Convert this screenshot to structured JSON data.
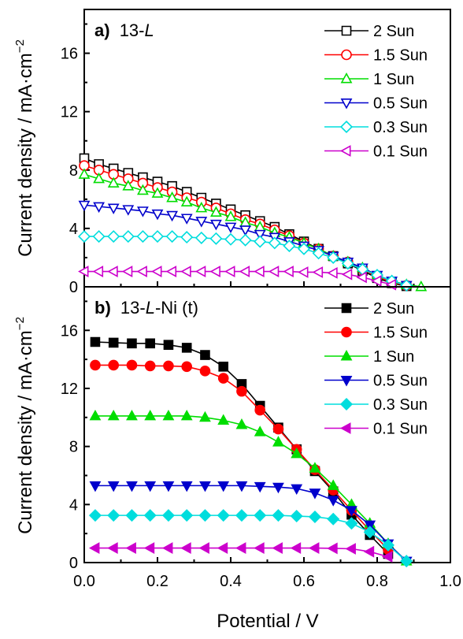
{
  "figure": {
    "xlabel": "Potential / V",
    "ylabel_base": "Current density / mA·cm",
    "ylabel_sup": "−2"
  },
  "chart_data": [
    {
      "type": "line",
      "panel_prefix": "a)",
      "panel_name": "13-",
      "panel_italic": "L",
      "panel_suffix": "",
      "marker_fill": "open",
      "xlim": [
        0.0,
        1.0
      ],
      "ylim": [
        0,
        19
      ],
      "xticks": [
        "0.0",
        "0.2",
        "0.4",
        "0.6",
        "0.8",
        "1.0"
      ],
      "show_xtick_labels": false,
      "yticks": [
        "0",
        "4",
        "8",
        "12",
        "16"
      ],
      "legend_position": "top-right",
      "x": [
        0.0,
        0.04,
        0.08,
        0.12,
        0.16,
        0.2,
        0.24,
        0.28,
        0.32,
        0.36,
        0.4,
        0.44,
        0.48,
        0.52,
        0.56,
        0.6,
        0.64,
        0.68,
        0.72,
        0.76,
        0.8,
        0.84,
        0.88,
        0.92
      ],
      "series": [
        {
          "name": "2 Sun",
          "marker": "square",
          "color": "#000000",
          "values": [
            8.8,
            8.4,
            8.1,
            7.8,
            7.5,
            7.2,
            6.9,
            6.5,
            6.1,
            5.7,
            5.3,
            4.9,
            4.5,
            4.1,
            3.6,
            3.1,
            2.6,
            2.1,
            1.6,
            1.1,
            0.6,
            0.25,
            0.05,
            null
          ]
        },
        {
          "name": "1.5 Sun",
          "marker": "circle",
          "color": "#ff0000",
          "values": [
            8.3,
            8.0,
            7.7,
            7.4,
            7.1,
            6.8,
            6.5,
            6.1,
            5.8,
            5.4,
            5.0,
            4.6,
            4.3,
            3.9,
            3.5,
            3.0,
            2.6,
            2.1,
            1.7,
            1.2,
            0.7,
            0.3,
            0.1,
            null
          ]
        },
        {
          "name": "1 Sun",
          "marker": "triangle-up",
          "color": "#00dd00",
          "values": [
            7.7,
            7.4,
            7.1,
            6.9,
            6.6,
            6.4,
            6.1,
            5.8,
            5.4,
            5.1,
            4.8,
            4.4,
            4.1,
            3.7,
            3.4,
            3.0,
            2.6,
            2.1,
            1.7,
            1.3,
            0.8,
            0.4,
            0.15,
            0.0
          ]
        },
        {
          "name": "0.5 Sun",
          "marker": "triangle-down",
          "color": "#0000cc",
          "values": [
            5.6,
            5.5,
            5.4,
            5.3,
            5.2,
            5.0,
            4.9,
            4.7,
            4.5,
            4.3,
            4.1,
            3.9,
            3.6,
            3.4,
            3.1,
            2.8,
            2.5,
            2.1,
            1.7,
            1.3,
            0.8,
            0.4,
            0.1,
            null
          ]
        },
        {
          "name": "0.3 Sun",
          "marker": "diamond",
          "color": "#00dddd",
          "values": [
            3.45,
            3.45,
            3.45,
            3.45,
            3.45,
            3.45,
            3.45,
            3.4,
            3.35,
            3.3,
            3.25,
            3.2,
            3.1,
            3.0,
            2.8,
            2.6,
            2.3,
            2.0,
            1.6,
            1.2,
            0.8,
            0.4,
            0.1,
            null
          ]
        },
        {
          "name": "0.1 Sun",
          "marker": "triangle-left",
          "color": "#cc00cc",
          "values": [
            1.05,
            1.05,
            1.05,
            1.05,
            1.05,
            1.05,
            1.05,
            1.05,
            1.05,
            1.05,
            1.05,
            1.05,
            1.05,
            1.05,
            1.05,
            1.0,
            1.0,
            0.95,
            0.85,
            0.65,
            0.4,
            0.15,
            null,
            null
          ]
        }
      ]
    },
    {
      "type": "line",
      "panel_prefix": "b)",
      "panel_name": "13-",
      "panel_italic": "L",
      "panel_suffix": "-Ni (t)",
      "marker_fill": "filled",
      "xlim": [
        0.0,
        1.0
      ],
      "ylim": [
        0,
        19
      ],
      "xticks": [
        "0.0",
        "0.2",
        "0.4",
        "0.6",
        "0.8",
        "1.0"
      ],
      "show_xtick_labels": true,
      "yticks": [
        "0",
        "4",
        "8",
        "12",
        "16"
      ],
      "legend_position": "top-right",
      "x": [
        0.03,
        0.08,
        0.13,
        0.18,
        0.23,
        0.28,
        0.33,
        0.38,
        0.43,
        0.48,
        0.53,
        0.58,
        0.63,
        0.68,
        0.73,
        0.78,
        0.83,
        0.88
      ],
      "series": [
        {
          "name": "2 Sun",
          "marker": "square",
          "color": "#000000",
          "values": [
            15.2,
            15.15,
            15.1,
            15.1,
            15.0,
            14.8,
            14.3,
            13.5,
            12.3,
            10.8,
            9.3,
            7.8,
            6.3,
            4.9,
            3.3,
            1.9,
            0.6,
            null
          ]
        },
        {
          "name": "1.5 Sun",
          "marker": "circle",
          "color": "#ff0000",
          "values": [
            13.6,
            13.6,
            13.6,
            13.55,
            13.55,
            13.5,
            13.2,
            12.7,
            11.8,
            10.5,
            9.2,
            7.8,
            6.4,
            5.0,
            3.6,
            2.2,
            0.9,
            null
          ]
        },
        {
          "name": "1 Sun",
          "marker": "triangle-up",
          "color": "#00dd00",
          "values": [
            10.1,
            10.1,
            10.1,
            10.1,
            10.1,
            10.1,
            10.0,
            9.8,
            9.5,
            9.0,
            8.3,
            7.5,
            6.5,
            5.3,
            4.0,
            2.7,
            1.3,
            0.1
          ]
        },
        {
          "name": "0.5 Sun",
          "marker": "triangle-down",
          "color": "#0000cc",
          "values": [
            5.3,
            5.3,
            5.3,
            5.3,
            5.3,
            5.3,
            5.3,
            5.3,
            5.3,
            5.25,
            5.2,
            5.1,
            4.8,
            4.3,
            3.6,
            2.6,
            1.3,
            0.1
          ]
        },
        {
          "name": "0.3 Sun",
          "marker": "diamond",
          "color": "#00dddd",
          "values": [
            3.25,
            3.25,
            3.25,
            3.25,
            3.25,
            3.25,
            3.25,
            3.25,
            3.25,
            3.25,
            3.25,
            3.2,
            3.15,
            3.0,
            2.7,
            2.1,
            1.2,
            0.1
          ]
        },
        {
          "name": "0.1 Sun",
          "marker": "triangle-left",
          "color": "#cc00cc",
          "values": [
            1.0,
            1.0,
            1.0,
            1.0,
            1.0,
            1.0,
            1.0,
            1.0,
            1.0,
            1.0,
            1.0,
            1.0,
            1.0,
            0.98,
            0.95,
            0.75,
            0.4,
            null
          ]
        }
      ]
    }
  ]
}
